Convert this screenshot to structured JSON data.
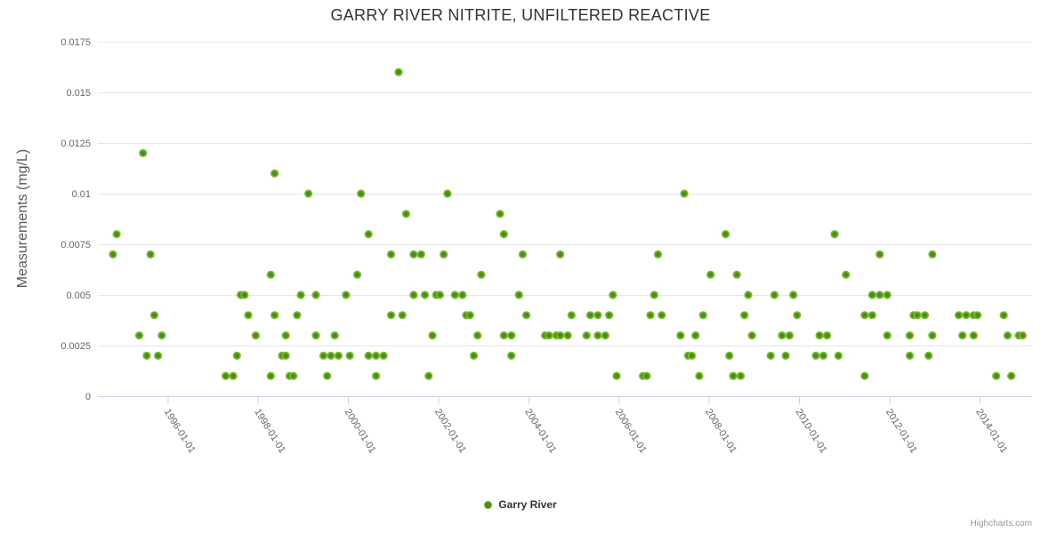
{
  "title": "GARRY RIVER NITRITE, UNFILTERED REACTIVE",
  "y_axis": {
    "title": "Measurements (mg/L)"
  },
  "legend": {
    "label": "Garry River"
  },
  "credit": "Highcharts.com",
  "colors": {
    "point_outer": "#7dbb32",
    "point_core": "#468c15",
    "grid": "#e6e6e6",
    "axis_line": "#ccd6eb",
    "tick": "#ccd6eb",
    "label": "#666666",
    "title": "#333333"
  },
  "chart_data": {
    "type": "scatter",
    "title": "GARRY RIVER NITRITE, UNFILTERED REACTIVE",
    "xlabel": "",
    "ylabel": "Measurements (mg/L)",
    "ylim": [
      0,
      0.0175
    ],
    "y_ticks": [
      0,
      0.0025,
      0.005,
      0.0075,
      0.01,
      0.0125,
      0.015,
      0.0175
    ],
    "y_tick_labels": [
      "0",
      "0.0025",
      "0.005",
      "0.0075",
      "0.01",
      "0.0125",
      "0.015",
      "0.0175"
    ],
    "x_ticks": [
      "1996-01-01",
      "1998-01-01",
      "2000-01-01",
      "2002-01-01",
      "2004-01-01",
      "2006-01-01",
      "2008-01-01",
      "2010-01-01",
      "2012-01-01",
      "2014-01-01"
    ],
    "x_range": [
      "1994-06-15",
      "2015-03-01"
    ],
    "grid": "horizontal-only",
    "legend_position": "bottom-center",
    "series": [
      {
        "name": "Garry River",
        "data": [
          [
            "1994-10",
            0.007
          ],
          [
            "1994-11",
            0.008
          ],
          [
            "1995-05",
            0.003
          ],
          [
            "1995-06",
            0.012
          ],
          [
            "1995-07",
            0.002
          ],
          [
            "1995-08",
            0.007
          ],
          [
            "1995-09",
            0.004
          ],
          [
            "1995-10",
            0.002
          ],
          [
            "1995-11",
            0.003
          ],
          [
            "1997-04",
            0.001
          ],
          [
            "1997-06",
            0.001
          ],
          [
            "1997-07",
            0.002
          ],
          [
            "1997-08",
            0.005
          ],
          [
            "1997-09",
            0.005
          ],
          [
            "1997-10",
            0.004
          ],
          [
            "1997-12",
            0.003
          ],
          [
            "1998-04",
            0.001
          ],
          [
            "1998-04",
            0.006
          ],
          [
            "1998-05",
            0.011
          ],
          [
            "1998-05",
            0.004
          ],
          [
            "1998-07",
            0.002
          ],
          [
            "1998-08",
            0.002
          ],
          [
            "1998-08",
            0.003
          ],
          [
            "1998-09",
            0.001
          ],
          [
            "1998-10",
            0.001
          ],
          [
            "1998-11",
            0.004
          ],
          [
            "1998-12",
            0.005
          ],
          [
            "1999-02",
            0.01
          ],
          [
            "1999-04",
            0.005
          ],
          [
            "1999-04",
            0.003
          ],
          [
            "1999-06",
            0.002
          ],
          [
            "1999-07",
            0.001
          ],
          [
            "1999-08",
            0.002
          ],
          [
            "1999-09",
            0.003
          ],
          [
            "1999-10",
            0.002
          ],
          [
            "1999-12",
            0.005
          ],
          [
            "2000-01",
            0.002
          ],
          [
            "2000-03",
            0.006
          ],
          [
            "2000-04",
            0.01
          ],
          [
            "2000-06",
            0.002
          ],
          [
            "2000-06",
            0.008
          ],
          [
            "2000-08",
            0.002
          ],
          [
            "2000-08",
            0.001
          ],
          [
            "2000-10",
            0.002
          ],
          [
            "2000-12",
            0.007
          ],
          [
            "2000-12",
            0.004
          ],
          [
            "2001-02",
            0.016
          ],
          [
            "2001-03",
            0.004
          ],
          [
            "2001-04",
            0.009
          ],
          [
            "2001-06",
            0.005
          ],
          [
            "2001-06",
            0.007
          ],
          [
            "2001-08",
            0.007
          ],
          [
            "2001-09",
            0.005
          ],
          [
            "2001-10",
            0.001
          ],
          [
            "2001-11",
            0.003
          ],
          [
            "2001-12",
            0.005
          ],
          [
            "2002-01",
            0.005
          ],
          [
            "2002-02",
            0.007
          ],
          [
            "2002-03",
            0.01
          ],
          [
            "2002-05",
            0.005
          ],
          [
            "2002-07",
            0.005
          ],
          [
            "2002-08",
            0.004
          ],
          [
            "2002-09",
            0.004
          ],
          [
            "2002-10",
            0.002
          ],
          [
            "2002-11",
            0.003
          ],
          [
            "2002-12",
            0.006
          ],
          [
            "2003-05",
            0.009
          ],
          [
            "2003-06",
            0.008
          ],
          [
            "2003-06",
            0.003
          ],
          [
            "2003-08",
            0.002
          ],
          [
            "2003-08",
            0.003
          ],
          [
            "2003-10",
            0.005
          ],
          [
            "2003-11",
            0.007
          ],
          [
            "2003-12",
            0.004
          ],
          [
            "2004-05",
            0.003
          ],
          [
            "2004-06",
            0.003
          ],
          [
            "2004-08",
            0.003
          ],
          [
            "2004-09",
            0.003
          ],
          [
            "2004-09",
            0.007
          ],
          [
            "2004-11",
            0.003
          ],
          [
            "2004-12",
            0.004
          ],
          [
            "2005-04",
            0.003
          ],
          [
            "2005-05",
            0.004
          ],
          [
            "2005-07",
            0.004
          ],
          [
            "2005-07",
            0.003
          ],
          [
            "2005-09",
            0.003
          ],
          [
            "2005-10",
            0.004
          ],
          [
            "2005-11",
            0.005
          ],
          [
            "2005-12",
            0.001
          ],
          [
            "2006-07",
            0.001
          ],
          [
            "2006-08",
            0.001
          ],
          [
            "2006-09",
            0.004
          ],
          [
            "2006-10",
            0.005
          ],
          [
            "2006-11",
            0.007
          ],
          [
            "2006-12",
            0.004
          ],
          [
            "2007-05",
            0.003
          ],
          [
            "2007-06",
            0.01
          ],
          [
            "2007-07",
            0.002
          ],
          [
            "2007-08",
            0.002
          ],
          [
            "2007-09",
            0.003
          ],
          [
            "2007-10",
            0.001
          ],
          [
            "2007-11",
            0.004
          ],
          [
            "2008-01",
            0.006
          ],
          [
            "2008-05",
            0.008
          ],
          [
            "2008-06",
            0.002
          ],
          [
            "2008-07",
            0.001
          ],
          [
            "2008-08",
            0.006
          ],
          [
            "2008-09",
            0.001
          ],
          [
            "2008-10",
            0.004
          ],
          [
            "2008-11",
            0.005
          ],
          [
            "2008-12",
            0.003
          ],
          [
            "2009-05",
            0.002
          ],
          [
            "2009-06",
            0.005
          ],
          [
            "2009-08",
            0.003
          ],
          [
            "2009-09",
            0.002
          ],
          [
            "2009-10",
            0.003
          ],
          [
            "2009-11",
            0.005
          ],
          [
            "2009-12",
            0.004
          ],
          [
            "2010-05",
            0.002
          ],
          [
            "2010-06",
            0.003
          ],
          [
            "2010-07",
            0.002
          ],
          [
            "2010-08",
            0.003
          ],
          [
            "2010-10",
            0.008
          ],
          [
            "2010-11",
            0.002
          ],
          [
            "2011-01",
            0.006
          ],
          [
            "2011-06",
            0.001
          ],
          [
            "2011-06",
            0.004
          ],
          [
            "2011-08",
            0.005
          ],
          [
            "2011-08",
            0.004
          ],
          [
            "2011-10",
            0.007
          ],
          [
            "2011-10",
            0.005
          ],
          [
            "2011-12",
            0.005
          ],
          [
            "2011-12",
            0.003
          ],
          [
            "2012-06",
            0.002
          ],
          [
            "2012-06",
            0.003
          ],
          [
            "2012-07",
            0.004
          ],
          [
            "2012-08",
            0.004
          ],
          [
            "2012-10",
            0.004
          ],
          [
            "2012-11",
            0.002
          ],
          [
            "2012-12",
            0.007
          ],
          [
            "2012-12",
            0.003
          ],
          [
            "2013-07",
            0.004
          ],
          [
            "2013-08",
            0.003
          ],
          [
            "2013-09",
            0.004
          ],
          [
            "2013-11",
            0.003
          ],
          [
            "2013-11",
            0.004
          ],
          [
            "2013-12",
            0.004
          ],
          [
            "2014-05",
            0.001
          ],
          [
            "2014-07",
            0.004
          ],
          [
            "2014-08",
            0.003
          ],
          [
            "2014-09",
            0.001
          ],
          [
            "2014-11",
            0.003
          ],
          [
            "2014-12",
            0.003
          ]
        ]
      }
    ]
  }
}
